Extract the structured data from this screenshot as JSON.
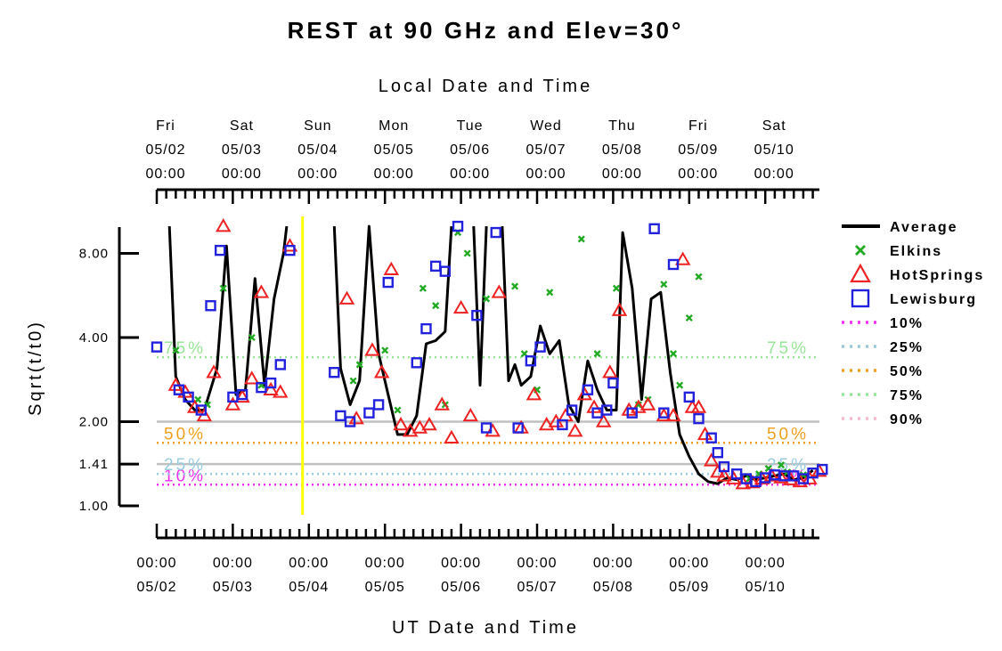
{
  "chart_data": {
    "type": "line",
    "title": "REST at 90 GHz and Elev=30°",
    "top_axis_label": "Local Date and Time",
    "xlabel": "UT Date and Time",
    "ylabel": "Sqrt(t/t0)",
    "y_scale": "log",
    "ylim": [
      1.0,
      10.0
    ],
    "yticks": [
      "8.00",
      "4.00",
      "2.00",
      "1.41",
      "1.00"
    ],
    "ytick_values": [
      8.0,
      4.0,
      2.0,
      1.41,
      1.0
    ],
    "x_unit": "hours since 05/02 00:00 UT",
    "xlim": [
      0,
      210
    ],
    "bottom_ticks": [
      {
        "time": "00:00",
        "date": "05/02"
      },
      {
        "time": "00:00",
        "date": "05/03"
      },
      {
        "time": "00:00",
        "date": "05/04"
      },
      {
        "time": "00:00",
        "date": "05/05"
      },
      {
        "time": "00:00",
        "date": "05/06"
      },
      {
        "time": "00:00",
        "date": "05/07"
      },
      {
        "time": "00:00",
        "date": "05/08"
      },
      {
        "time": "00:00",
        "date": "05/09"
      },
      {
        "time": "00:00",
        "date": "05/10"
      }
    ],
    "top_ticks": [
      {
        "day": "Fri",
        "date": "05/02",
        "time": "00:00"
      },
      {
        "day": "Sat",
        "date": "05/03",
        "time": "00:00"
      },
      {
        "day": "Sun",
        "date": "05/04",
        "time": "00:00"
      },
      {
        "day": "Mon",
        "date": "05/05",
        "time": "00:00"
      },
      {
        "day": "Tue",
        "date": "05/06",
        "time": "00:00"
      },
      {
        "day": "Wed",
        "date": "05/07",
        "time": "00:00"
      },
      {
        "day": "Thu",
        "date": "05/08",
        "time": "00:00"
      },
      {
        "day": "Fri",
        "date": "05/09",
        "time": "00:00"
      },
      {
        "day": "Sat",
        "date": "05/10",
        "time": "00:00"
      }
    ],
    "reference_lines": [
      {
        "value": 2.0,
        "color": "#c0c0c0"
      },
      {
        "value": 1.41,
        "color": "#c0c0c0"
      }
    ],
    "now_marker_hours": 46,
    "percentiles": [
      {
        "label": "10%",
        "value": 1.19,
        "color": "#ee33ee"
      },
      {
        "label": "25%",
        "value": 1.3,
        "color": "#99ccdd"
      },
      {
        "label": "50%",
        "value": 1.68,
        "color": "#f0a020"
      },
      {
        "label": "75%",
        "value": 3.4,
        "color": "#99e699"
      },
      {
        "label": "90%",
        "value": null,
        "color": "#f5b8c8"
      }
    ],
    "legend": [
      {
        "label": "Average",
        "marker": "line",
        "color": "#000000"
      },
      {
        "label": "Elkins",
        "marker": "x",
        "color": "#22aa22"
      },
      {
        "label": "HotSprings",
        "marker": "triangle",
        "color": "#ee2222"
      },
      {
        "label": "Lewisburg",
        "marker": "square",
        "color": "#2222dd"
      },
      {
        "label": "10%",
        "marker": "dotted",
        "color": "#ee33ee"
      },
      {
        "label": "25%",
        "marker": "dotted",
        "color": "#99ccdd"
      },
      {
        "label": "50%",
        "marker": "dotted",
        "color": "#f0a020"
      },
      {
        "label": "75%",
        "marker": "dotted",
        "color": "#99e699"
      },
      {
        "label": "90%",
        "marker": "dotted",
        "color": "#f5b8c8"
      }
    ],
    "series": [
      {
        "name": "Average",
        "segments": [
          [
            [
              4,
              10
            ],
            [
              6,
              2.9
            ],
            [
              9,
              2.4
            ],
            [
              12,
              2.2
            ],
            [
              15,
              2.2
            ],
            [
              19,
              3.1
            ],
            [
              22,
              8.5
            ],
            [
              25,
              2.5
            ],
            [
              28,
              2.6
            ],
            [
              31,
              6.5
            ],
            [
              34,
              2.7
            ],
            [
              37,
              5.5
            ],
            [
              40,
              8.0
            ],
            [
              41,
              10
            ]
          ],
          [
            [
              56,
              10
            ],
            [
              58,
              3.1
            ],
            [
              61,
              2.3
            ],
            [
              64,
              2.8
            ],
            [
              67,
              10
            ],
            [
              70,
              3.5
            ],
            [
              73,
              2.5
            ],
            [
              76,
              1.8
            ],
            [
              79,
              1.8
            ],
            [
              82,
              2.1
            ],
            [
              85,
              3.8
            ],
            [
              88,
              3.9
            ],
            [
              91,
              4.2
            ],
            [
              93,
              10
            ]
          ],
          [
            [
              100,
              10
            ],
            [
              102,
              2.7
            ],
            [
              104,
              10
            ]
          ],
          [
            [
              109,
              10
            ],
            [
              111,
              2.8
            ],
            [
              113,
              3.2
            ],
            [
              115,
              2.7
            ],
            [
              118,
              2.9
            ],
            [
              121,
              4.4
            ],
            [
              124,
              3.5
            ],
            [
              127,
              3.9
            ],
            [
              130,
              2.3
            ],
            [
              133,
              2.0
            ],
            [
              136,
              3.3
            ],
            [
              139,
              2.6
            ],
            [
              142,
              2.2
            ],
            [
              145,
              2.2
            ],
            [
              147,
              9.5
            ],
            [
              150,
              6.0
            ],
            [
              153,
              2.4
            ],
            [
              156,
              5.5
            ],
            [
              159,
              5.8
            ],
            [
              162,
              3.0
            ],
            [
              165,
              1.8
            ],
            [
              168,
              1.5
            ],
            [
              171,
              1.3
            ],
            [
              174,
              1.22
            ],
            [
              177,
              1.2
            ],
            [
              180,
              1.26
            ],
            [
              183,
              1.24
            ],
            [
              186,
              1.28
            ],
            [
              189,
              1.24
            ],
            [
              192,
              1.26
            ],
            [
              195,
              1.28
            ],
            [
              198,
              1.3
            ],
            [
              201,
              1.24
            ],
            [
              204,
              1.26
            ],
            [
              207,
              1.34
            ]
          ]
        ]
      },
      {
        "name": "Elkins",
        "points": [
          [
            6,
            3.6
          ],
          [
            13,
            2.4
          ],
          [
            16,
            2.3
          ],
          [
            21,
            6.0
          ],
          [
            30,
            4.0
          ],
          [
            33,
            2.7
          ],
          [
            62,
            2.8
          ],
          [
            64,
            3.2
          ],
          [
            72,
            3.6
          ],
          [
            76,
            2.2
          ],
          [
            84,
            6.0
          ],
          [
            88,
            5.2
          ],
          [
            91,
            2.3
          ],
          [
            95,
            9.5
          ],
          [
            98,
            8.0
          ],
          [
            104,
            5.5
          ],
          [
            113,
            6.1
          ],
          [
            116,
            3.5
          ],
          [
            120,
            2.6
          ],
          [
            124,
            5.8
          ],
          [
            134,
            9.0
          ],
          [
            139,
            3.5
          ],
          [
            145,
            6.0
          ],
          [
            152,
            2.3
          ],
          [
            155,
            2.4
          ],
          [
            160,
            6.2
          ],
          [
            163,
            3.5
          ],
          [
            165,
            2.7
          ],
          [
            168,
            4.7
          ],
          [
            171,
            6.6
          ],
          [
            187,
            1.25
          ],
          [
            190,
            1.3
          ],
          [
            193,
            1.36
          ],
          [
            197,
            1.4
          ],
          [
            199,
            1.32
          ],
          [
            204,
            1.29
          ]
        ]
      },
      {
        "name": "HotSprings",
        "points": [
          [
            6,
            2.7
          ],
          [
            9,
            2.55
          ],
          [
            12,
            2.25
          ],
          [
            15,
            2.1
          ],
          [
            18,
            3.0
          ],
          [
            21,
            10
          ],
          [
            24,
            2.3
          ],
          [
            27,
            2.45
          ],
          [
            30,
            2.85
          ],
          [
            33,
            5.8
          ],
          [
            36,
            2.6
          ],
          [
            39,
            2.55
          ],
          [
            42,
            8.5
          ],
          [
            60,
            5.5
          ],
          [
            63,
            2.05
          ],
          [
            68,
            3.6
          ],
          [
            71,
            3.0
          ],
          [
            74,
            7.0
          ],
          [
            77,
            1.95
          ],
          [
            80,
            1.85
          ],
          [
            83,
            1.9
          ],
          [
            86,
            1.95
          ],
          [
            90,
            2.3
          ],
          [
            93,
            1.75
          ],
          [
            96,
            5.1
          ],
          [
            99,
            2.1
          ],
          [
            106,
            1.85
          ],
          [
            108,
            5.8
          ],
          [
            115,
            1.9
          ],
          [
            119,
            2.5
          ],
          [
            123,
            1.95
          ],
          [
            126,
            2.0
          ],
          [
            129,
            2.1
          ],
          [
            132,
            1.85
          ],
          [
            135,
            2.5
          ],
          [
            138,
            2.25
          ],
          [
            141,
            2.0
          ],
          [
            143,
            3.0
          ],
          [
            146,
            5.0
          ],
          [
            149,
            2.2
          ],
          [
            152,
            2.25
          ],
          [
            155,
            2.3
          ],
          [
            160,
            2.1
          ],
          [
            163,
            2.1
          ],
          [
            166,
            7.6
          ],
          [
            169,
            2.25
          ],
          [
            171,
            2.25
          ],
          [
            173,
            1.8
          ],
          [
            175,
            1.45
          ],
          [
            177,
            1.32
          ],
          [
            179,
            1.28
          ],
          [
            182,
            1.25
          ],
          [
            185,
            1.2
          ],
          [
            188,
            1.21
          ],
          [
            191,
            1.25
          ],
          [
            194,
            1.28
          ],
          [
            197,
            1.26
          ],
          [
            200,
            1.24
          ],
          [
            203,
            1.22
          ],
          [
            206,
            1.25
          ],
          [
            209,
            1.33
          ]
        ]
      },
      {
        "name": "Lewisburg",
        "points": [
          [
            0,
            3.7
          ],
          [
            7,
            2.6
          ],
          [
            10,
            2.45
          ],
          [
            14,
            2.2
          ],
          [
            17,
            5.2
          ],
          [
            20,
            8.2
          ],
          [
            24,
            2.45
          ],
          [
            27,
            2.5
          ],
          [
            33,
            2.65
          ],
          [
            36,
            2.75
          ],
          [
            39,
            3.2
          ],
          [
            42,
            8.2
          ],
          [
            56,
            3.0
          ],
          [
            58,
            2.1
          ],
          [
            61,
            2.0
          ],
          [
            67,
            2.15
          ],
          [
            70,
            2.3
          ],
          [
            73,
            6.3
          ],
          [
            82,
            3.25
          ],
          [
            85,
            4.3
          ],
          [
            88,
            7.2
          ],
          [
            91,
            6.9
          ],
          [
            95,
            10
          ],
          [
            101,
            4.8
          ],
          [
            104,
            1.9
          ],
          [
            107,
            9.5
          ],
          [
            114,
            1.9
          ],
          [
            118,
            3.3
          ],
          [
            121,
            3.7
          ],
          [
            128,
            1.95
          ],
          [
            131,
            2.2
          ],
          [
            136,
            2.6
          ],
          [
            139,
            2.15
          ],
          [
            142,
            2.2
          ],
          [
            144,
            2.75
          ],
          [
            150,
            2.15
          ],
          [
            157,
            9.8
          ],
          [
            160,
            2.15
          ],
          [
            163,
            7.3
          ],
          [
            168,
            2.45
          ],
          [
            171,
            2.05
          ],
          [
            175,
            1.75
          ],
          [
            177,
            1.55
          ],
          [
            179,
            1.38
          ],
          [
            183,
            1.3
          ],
          [
            186,
            1.25
          ],
          [
            189,
            1.22
          ],
          [
            192,
            1.26
          ],
          [
            195,
            1.29
          ],
          [
            198,
            1.28
          ],
          [
            201,
            1.28
          ],
          [
            204,
            1.25
          ],
          [
            207,
            1.31
          ],
          [
            210,
            1.35
          ]
        ]
      }
    ]
  }
}
